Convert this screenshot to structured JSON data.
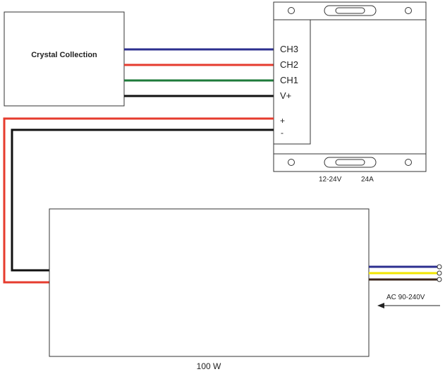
{
  "components": {
    "fixture": {
      "label": "Crystal Collection"
    },
    "controller": {
      "terminals": [
        "CH3",
        "CH2",
        "CH1",
        "V+"
      ],
      "power_terminals": [
        "+",
        "-"
      ],
      "rating": "12-24V",
      "current": "24A"
    },
    "power_supply": {
      "wattage": "100 W",
      "input_label": "AC 90-240V"
    }
  },
  "colors": {
    "ch3_wire": "#2c2f8f",
    "ch2_wire": "#e63b2e",
    "ch1_wire": "#1e7a3a",
    "vplus_wire": "#111111",
    "positive_wire": "#e63b2e",
    "negative_wire": "#111111",
    "ac_line_1": "#2c2f8f",
    "ac_line_2": "#f2e600",
    "ac_line_3": "#3a2418"
  }
}
